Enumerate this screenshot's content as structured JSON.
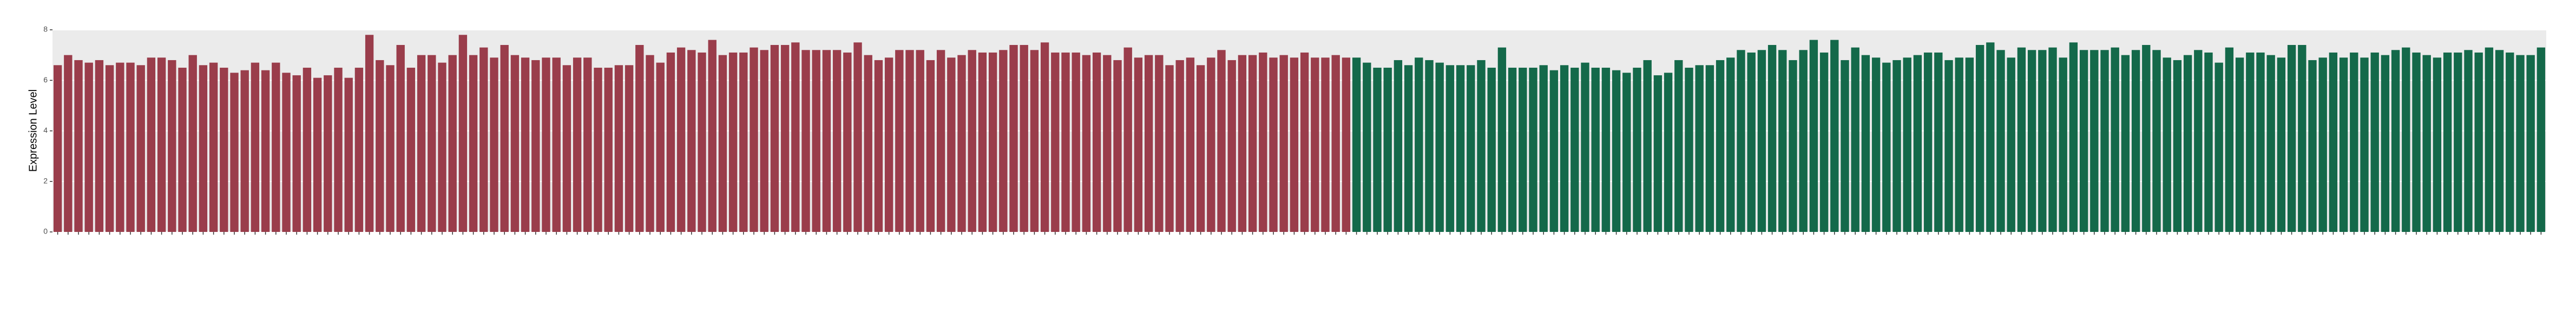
{
  "chart_data": {
    "type": "bar",
    "y_label": "Expression Level",
    "ylim": [
      0,
      8
    ],
    "yticks": [
      0,
      2,
      4,
      6,
      8
    ],
    "grid": true,
    "categories": [
      null,
      null,
      null,
      null,
      null,
      null,
      null,
      null,
      null,
      null,
      null,
      null,
      null,
      null,
      null,
      null,
      null,
      null,
      null,
      null,
      null,
      null,
      null,
      null,
      null,
      null,
      null,
      null,
      null,
      null,
      null,
      null,
      null,
      null,
      null,
      null,
      null,
      null,
      null,
      null,
      null,
      null,
      null,
      null,
      null,
      null,
      null,
      null,
      null,
      null,
      null,
      null,
      null,
      null,
      null,
      null,
      null,
      null,
      null,
      null,
      null,
      null,
      null,
      null,
      null,
      null,
      null,
      null,
      null,
      null,
      null,
      null,
      null,
      null,
      null,
      null,
      null,
      null,
      null,
      null,
      null,
      null,
      null,
      null,
      null,
      null,
      null,
      null,
      null,
      null,
      null,
      null,
      null,
      null,
      null,
      null,
      null,
      null,
      null,
      null,
      null,
      null,
      null,
      null,
      null,
      null,
      null,
      null,
      null,
      null,
      null,
      null,
      null,
      null,
      null,
      null,
      null,
      null,
      null,
      null,
      null,
      null,
      null,
      null,
      null,
      null,
      null,
      null,
      null,
      null,
      null,
      null,
      null,
      null,
      null,
      null,
      null,
      null,
      null,
      null,
      null,
      null,
      null,
      null,
      null,
      null,
      null,
      null,
      null,
      null,
      null,
      null,
      null,
      null,
      null,
      null,
      null,
      null,
      null,
      null,
      null,
      null,
      null,
      null,
      null,
      null,
      null,
      null,
      null,
      null,
      null,
      null,
      null,
      null,
      null,
      null,
      null,
      null,
      null,
      null,
      null,
      null,
      null,
      null,
      null,
      null,
      null,
      null,
      null,
      null,
      null,
      null,
      null,
      null,
      null,
      null,
      null,
      null,
      null,
      null,
      null,
      null,
      null,
      null,
      null,
      null,
      null,
      null,
      null,
      null,
      null,
      null,
      null,
      null,
      null,
      null,
      null,
      null,
      null,
      null,
      null,
      null,
      null,
      null,
      null,
      null,
      null,
      null,
      null,
      null,
      null,
      null,
      null,
      null,
      null,
      null,
      null,
      null,
      null,
      null
    ],
    "series": [
      {
        "color": "#9a3d4b",
        "values": [
          6.6,
          7.0,
          6.8,
          6.7,
          6.8,
          6.6,
          6.7,
          6.7,
          6.6,
          6.9,
          6.9,
          6.8,
          6.5,
          7.0,
          6.6,
          6.7,
          6.5,
          6.3,
          6.4,
          6.7,
          6.4,
          6.7,
          6.3,
          6.2,
          6.5,
          6.1,
          6.2,
          6.5,
          6.1,
          6.5,
          7.8,
          6.8,
          6.6,
          7.4,
          6.5,
          7.0,
          7.0,
          6.7,
          7.0,
          7.8,
          7.0,
          7.3,
          6.9,
          7.4,
          7.0,
          6.9,
          6.8,
          6.9,
          6.9,
          6.6,
          6.9,
          6.9,
          6.5,
          6.5,
          6.6,
          6.6,
          7.4,
          7.0,
          6.7,
          7.1,
          7.3,
          7.2,
          7.1,
          7.6,
          7.0,
          7.1,
          7.1,
          7.3,
          7.2,
          7.4,
          7.4,
          7.5,
          7.2,
          7.2,
          7.2,
          7.2,
          7.1,
          7.5,
          7.0,
          6.8,
          6.9,
          7.2,
          7.2,
          7.2,
          6.8,
          7.2,
          6.9,
          7.0,
          7.2,
          7.1,
          7.1,
          7.2,
          7.4,
          7.4,
          7.2,
          7.5,
          7.1,
          7.1,
          7.1,
          7.0,
          7.1,
          7.0,
          6.8,
          7.3,
          6.9,
          7.0,
          7.0,
          6.6,
          6.8,
          6.9,
          6.6,
          6.9,
          7.2,
          6.8,
          7.0,
          7.0,
          7.1,
          6.9,
          7.0,
          6.9,
          7.1,
          6.9,
          6.9,
          7.0,
          6.9,
          null,
          null,
          null,
          null,
          null,
          null,
          null,
          null,
          null,
          null,
          null,
          null,
          null,
          null,
          null,
          null,
          null,
          null,
          null,
          null,
          null,
          null,
          null,
          null,
          null,
          null,
          null,
          null,
          null,
          null,
          null,
          null,
          null,
          null,
          null,
          null,
          null,
          null,
          null,
          null,
          null,
          null,
          null,
          null,
          null,
          null,
          null,
          null,
          null,
          null,
          null,
          null,
          null,
          null,
          null,
          null,
          null,
          null,
          null,
          null,
          null,
          null,
          null,
          null,
          null,
          null,
          null,
          null,
          null,
          null,
          null,
          null,
          null,
          null,
          null,
          null,
          null,
          null,
          null,
          null,
          null,
          null,
          null,
          null,
          null,
          null,
          null,
          null,
          null,
          null,
          null,
          null,
          null,
          null,
          null,
          null,
          null,
          null,
          null,
          null,
          null,
          null,
          null,
          null,
          null,
          null,
          null,
          null,
          null,
          null,
          null,
          null,
          null,
          null,
          null
        ]
      },
      {
        "color": "#14694a",
        "values": [
          null,
          null,
          null,
          null,
          null,
          null,
          null,
          null,
          null,
          null,
          null,
          null,
          null,
          null,
          null,
          null,
          null,
          null,
          null,
          null,
          null,
          null,
          null,
          null,
          null,
          null,
          null,
          null,
          null,
          null,
          null,
          null,
          null,
          null,
          null,
          null,
          null,
          null,
          null,
          null,
          null,
          null,
          null,
          null,
          null,
          null,
          null,
          null,
          null,
          null,
          null,
          null,
          null,
          null,
          null,
          null,
          null,
          null,
          null,
          null,
          null,
          null,
          null,
          null,
          null,
          null,
          null,
          null,
          null,
          null,
          null,
          null,
          null,
          null,
          null,
          null,
          null,
          null,
          null,
          null,
          null,
          null,
          null,
          null,
          null,
          null,
          null,
          null,
          null,
          null,
          null,
          null,
          null,
          null,
          null,
          null,
          null,
          null,
          null,
          null,
          null,
          null,
          null,
          null,
          null,
          null,
          null,
          null,
          null,
          null,
          null,
          null,
          null,
          null,
          null,
          null,
          null,
          null,
          null,
          null,
          null,
          null,
          null,
          null,
          null,
          6.9,
          6.7,
          6.5,
          6.5,
          6.8,
          6.6,
          6.9,
          6.8,
          6.7,
          6.6,
          6.6,
          6.6,
          6.8,
          6.5,
          7.3,
          6.5,
          6.5,
          6.5,
          6.6,
          6.4,
          6.6,
          6.5,
          6.7,
          6.5,
          6.5,
          6.4,
          6.3,
          6.5,
          6.8,
          6.2,
          6.3,
          6.8,
          6.5,
          6.6,
          6.6,
          6.8,
          6.9,
          7.2,
          7.1,
          7.2,
          7.4,
          7.2,
          6.8,
          7.2,
          7.6,
          7.1,
          7.6,
          6.8,
          7.3,
          7.0,
          6.9,
          6.7,
          6.8,
          6.9,
          7.0,
          7.1,
          7.1,
          6.8,
          6.9,
          6.9,
          7.4,
          7.5,
          7.2,
          6.9,
          7.3,
          7.2,
          7.2,
          7.3,
          6.9,
          7.5,
          7.2,
          7.2,
          7.2,
          7.3,
          7.0,
          7.2,
          7.4,
          7.2,
          6.9,
          6.8,
          7.0,
          7.2,
          7.1,
          6.7,
          7.3,
          6.9,
          7.1,
          7.1,
          7.0,
          6.9,
          7.4,
          7.4,
          6.8,
          6.9,
          7.1,
          6.9,
          7.1,
          6.9,
          7.1,
          7.0,
          7.2,
          7.3,
          7.1,
          7.0,
          6.9,
          7.1,
          7.1,
          7.2,
          7.1,
          7.3,
          7.2,
          7.1,
          7.0,
          7.0,
          7.3
        ]
      }
    ]
  }
}
